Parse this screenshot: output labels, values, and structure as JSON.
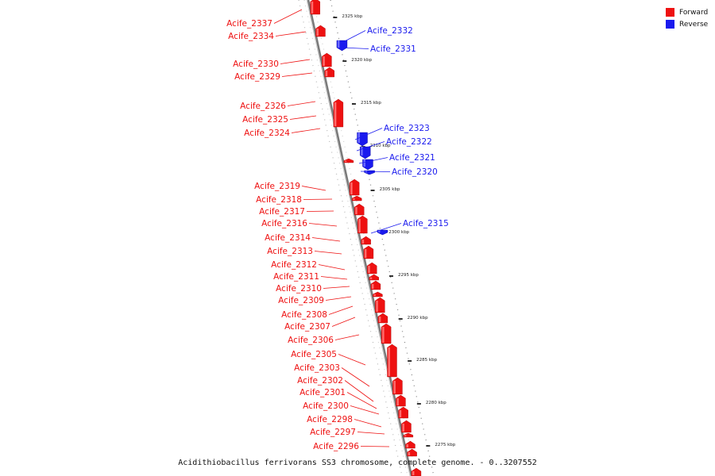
{
  "colors": {
    "forward": "#ee1111",
    "reverse": "#1a1aee",
    "backbone": "#7a7a7a"
  },
  "legend": [
    {
      "label": "Forward",
      "color": "#ee1111"
    },
    {
      "label": "Reverse",
      "color": "#1a1aee"
    }
  ],
  "caption": "Acidithiobacillus ferrivorans SS3 chromosome, complete genome. - 0..3207552",
  "ticks": [
    "2325 kbp",
    "2320 kbp",
    "2315 kbp",
    "2310 kbp",
    "2305 kbp",
    "2300 kbp",
    "2295 kbp",
    "2290 kbp",
    "2285 kbp",
    "2280 kbp",
    "2275 kbp"
  ],
  "forward_genes": [
    "Acife_2337",
    "Acife_2334",
    "Acife_2330",
    "Acife_2329",
    "Acife_2326",
    "Acife_2325",
    "Acife_2324",
    "Acife_2319",
    "Acife_2318",
    "Acife_2317",
    "Acife_2316",
    "Acife_2314",
    "Acife_2313",
    "Acife_2312",
    "Acife_2311",
    "Acife_2310",
    "Acife_2309",
    "Acife_2308",
    "Acife_2307",
    "Acife_2306",
    "Acife_2305",
    "Acife_2303",
    "Acife_2302",
    "Acife_2301",
    "Acife_2300",
    "Acife_2298",
    "Acife_2297",
    "Acife_2296"
  ],
  "reverse_genes": [
    "Acife_2332",
    "Acife_2331",
    "Acife_2323",
    "Acife_2322",
    "Acife_2321",
    "Acife_2320",
    "Acife_2315"
  ]
}
